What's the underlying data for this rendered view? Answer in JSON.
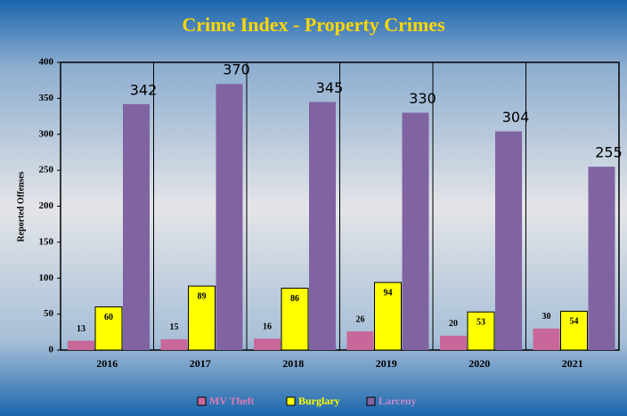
{
  "chart_data": {
    "type": "bar",
    "title": "Crime Index - Property Crimes",
    "y_label": "Reported Offenses",
    "categories": [
      "2016",
      "2017",
      "2018",
      "2019",
      "2020",
      "2021"
    ],
    "series": [
      {
        "name": "MV Theft",
        "color": "#c8679a",
        "values": [
          13,
          15,
          16,
          26,
          20,
          30
        ]
      },
      {
        "name": "Burglary",
        "color": "#ffff00",
        "values": [
          60,
          89,
          86,
          94,
          53,
          54
        ]
      },
      {
        "name": "Larceny",
        "color": "#8064a2",
        "values": [
          342,
          370,
          345,
          330,
          304,
          255
        ]
      }
    ],
    "ylim": [
      0,
      400
    ],
    "yticks": [
      0,
      50,
      100,
      150,
      200,
      250,
      300,
      350,
      400
    ],
    "legend": "bottom"
  }
}
